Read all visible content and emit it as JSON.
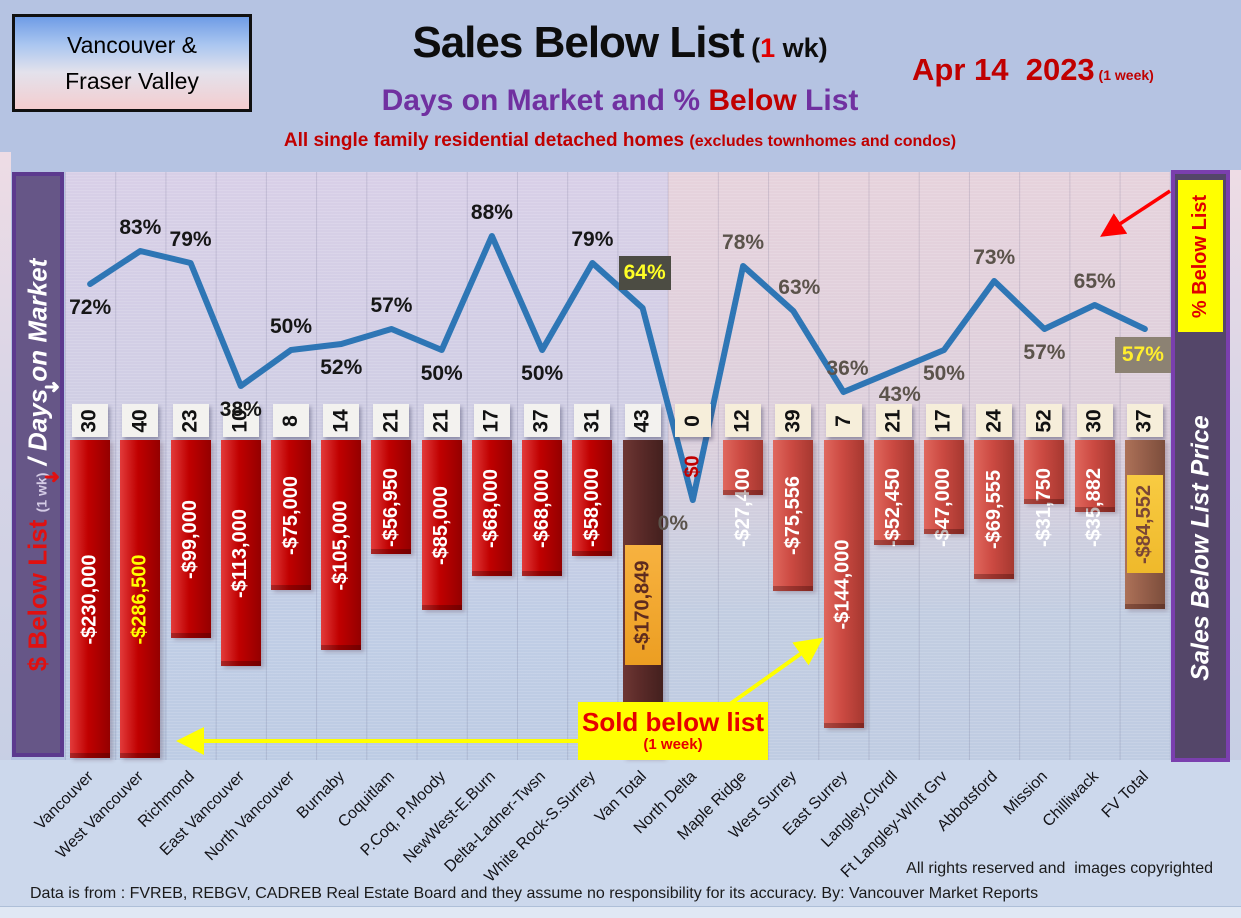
{
  "header": {
    "region_box": {
      "line1": "Vancouver &",
      "line2": "Fraser Valley"
    },
    "title": {
      "main": "Sales Below List",
      "paren_open": " (",
      "one": "1",
      "wk": " wk)"
    },
    "date": {
      "main": "Apr 14  2023",
      "small": " (1 week)"
    },
    "subtitle": {
      "part1": "Days on Market and % ",
      "part2": "Below",
      "part3": " List"
    },
    "tagline": {
      "main": "All single family residential detached homes ",
      "small": "(excludes townhomes and condos)"
    }
  },
  "left_axis": {
    "dollar": "$ Below List ",
    "wk": "(1 wk)",
    "days": " / Days on Market"
  },
  "right_axis": {
    "pct_box": "% Below List",
    "price": "Sales Below List Price"
  },
  "annotations": {
    "sold_box": {
      "line1": "Sold below list",
      "line2": "(1 week)"
    }
  },
  "footer": {
    "rights": "All rights reserved and  images copyrighted",
    "source": "Data is from : FVREB, REBGV, CADREB Real Estate Board and they assume no responsibility for its accuracy. By: Vancouver Market Reports"
  },
  "colors": {
    "line_blue": "#2e76b5",
    "bar_red_vancouver": "#c00000",
    "bar_red_fraser": "#cc4a42",
    "bar_maroon_van_total": "#5a2a28",
    "bar_brown_fv_total": "#97604b",
    "chip_orange": "#f2a833",
    "chip_yellow": "#f6c434",
    "highlight_yellow": "#ffff00",
    "accent_red": "#c00000",
    "accent_purple": "#7030a0",
    "sidebar_purple": "#665687",
    "pct_box_dark": "#4c4c43",
    "pct_box_gray": "#8c8273"
  },
  "chart_data": {
    "type": "bar+line",
    "title": "Sales Below List (1 wk)",
    "xlabel": "",
    "ylabel_left": "$ Below List (1 wk) / Days on Market",
    "ylabel_right": "% Below List",
    "line_ylim_pct": [
      0,
      100
    ],
    "grid": true,
    "legend_position": "none",
    "categories": [
      "Vancouver",
      "West Vancouver",
      "Richmond",
      "East Vancouver",
      "North Vancouver",
      "Burnaby",
      "Coquitlam",
      "P.Coq, P.Moody",
      "NewWest-E.Burn",
      "Delta-Ladner-Twsn",
      "White Rock-S.Surrey",
      "Van Total",
      "North Delta",
      "Maple Ridge",
      "West Surrey",
      "East Surrey",
      "Langley,Clvrdl",
      "Ft Langley-WInt Grv",
      "Abbotsford",
      "Mission",
      "Chilliwack",
      "FV Total"
    ],
    "columns": [
      {
        "name": "Vancouver",
        "days": 30,
        "amount": -230000,
        "amount_label": "-$230,000",
        "pct": 72,
        "pct_label": "72%",
        "pct_pos": "below",
        "bar": "red",
        "label": "white"
      },
      {
        "name": "West Vancouver",
        "days": 40,
        "amount": -286500,
        "amount_label": "-$286,500",
        "pct": 83,
        "pct_label": "83%",
        "pct_pos": "above",
        "bar": "red",
        "label": "yellow"
      },
      {
        "name": "Richmond",
        "days": 23,
        "amount": -99000,
        "amount_label": "-$99,000",
        "pct": 79,
        "pct_label": "79%",
        "pct_pos": "above",
        "bar": "red",
        "label": "white"
      },
      {
        "name": "East Vancouver",
        "days": 10,
        "amount": -113000,
        "amount_label": "-$113,000",
        "pct": 38,
        "pct_label": "38%",
        "pct_pos": "below",
        "bar": "red",
        "label": "white"
      },
      {
        "name": "North Vancouver",
        "days": 8,
        "amount": -75000,
        "amount_label": "-$75,000",
        "pct": 50,
        "pct_label": "50%",
        "pct_pos": "above",
        "bar": "red",
        "label": "white"
      },
      {
        "name": "Burnaby",
        "days": 14,
        "amount": -105000,
        "amount_label": "-$105,000",
        "pct": 52,
        "pct_label": "52%",
        "pct_pos": "below",
        "bar": "red",
        "label": "white"
      },
      {
        "name": "Coquitlam",
        "days": 21,
        "amount": -56950,
        "amount_label": "-$56,950",
        "pct": 57,
        "pct_label": "57%",
        "pct_pos": "above",
        "bar": "red",
        "label": "white"
      },
      {
        "name": "P.Coq, P.Moody",
        "days": 21,
        "amount": -85000,
        "amount_label": "-$85,000",
        "pct": 50,
        "pct_label": "50%",
        "pct_pos": "below",
        "bar": "red",
        "label": "white"
      },
      {
        "name": "NewWest-E.Burn",
        "days": 17,
        "amount": -68000,
        "amount_label": "-$68,000",
        "pct": 88,
        "pct_label": "88%",
        "pct_pos": "above",
        "bar": "red",
        "label": "white"
      },
      {
        "name": "Delta-Ladner-Twsn",
        "days": 37,
        "amount": -68000,
        "amount_label": "-$68,000",
        "pct": 50,
        "pct_label": "50%",
        "pct_pos": "below",
        "bar": "red",
        "label": "white"
      },
      {
        "name": "White Rock-S.Surrey",
        "days": 31,
        "amount": -58000,
        "amount_label": "-$58,000",
        "pct": 79,
        "pct_label": "79%",
        "pct_pos": "above",
        "bar": "red",
        "label": "white"
      },
      {
        "name": "Van Total",
        "days": 43,
        "amount": -170849,
        "amount_label": "-$170,849",
        "pct": 64,
        "pct_label": "64%",
        "pct_pos": "above",
        "pct_box": "dark",
        "bar": "maroon",
        "label": "chip-orange"
      },
      {
        "name": "North Delta",
        "days": 0,
        "amount": 0,
        "amount_label": "$0",
        "pct": 0,
        "pct_label": "0%",
        "pct_pos": "below",
        "pct_dx": -20,
        "bar": "none",
        "label": "zero-red"
      },
      {
        "name": "Maple Ridge",
        "days": 12,
        "amount": -27400,
        "amount_label": "-$27,400",
        "pct": 78,
        "pct_label": "78%",
        "pct_pos": "above",
        "bar": "red2",
        "label": "white"
      },
      {
        "name": "West Surrey",
        "days": 39,
        "amount": -75556,
        "amount_label": "-$75,556",
        "pct": 63,
        "pct_label": "63%",
        "pct_pos": "above",
        "pct_dx": 6,
        "bar": "red2",
        "label": "white"
      },
      {
        "name": "East Surrey",
        "days": 7,
        "amount": -144000,
        "amount_label": "-$144,000",
        "pct": 36,
        "pct_label": "36%",
        "pct_pos": "above",
        "pct_dx": 4,
        "bar": "red2",
        "label": "white"
      },
      {
        "name": "Langley,Clvrdl",
        "days": 21,
        "amount": -52450,
        "amount_label": "-$52,450",
        "pct": 43,
        "pct_label": "43%",
        "pct_pos": "below",
        "pct_dx": 6,
        "bar": "red2",
        "label": "white"
      },
      {
        "name": "Ft Langley-WInt Grv",
        "days": 17,
        "amount": -47000,
        "amount_label": "-$47,000",
        "pct": 50,
        "pct_label": "50%",
        "pct_pos": "below",
        "bar": "red2",
        "label": "white"
      },
      {
        "name": "Abbotsford",
        "days": 24,
        "amount": -69555,
        "amount_label": "-$69,555",
        "pct": 73,
        "pct_label": "73%",
        "pct_pos": "above",
        "bar": "red2",
        "label": "white"
      },
      {
        "name": "Mission",
        "days": 52,
        "amount": -31750,
        "amount_label": "-$31,750",
        "pct": 57,
        "pct_label": "57%",
        "pct_pos": "below",
        "bar": "red2",
        "label": "white"
      },
      {
        "name": "Chilliwack",
        "days": 30,
        "amount": -35882,
        "amount_label": "-$35,882",
        "pct": 65,
        "pct_label": "65%",
        "pct_pos": "above",
        "bar": "red2",
        "label": "white"
      },
      {
        "name": "FV Total",
        "days": 37,
        "amount": -84552,
        "amount_label": "-$84,552",
        "pct": 57,
        "pct_label": "57%",
        "pct_pos": "below",
        "pct_box": "gray",
        "bar": "brown",
        "label": "chip-yellow"
      }
    ]
  }
}
